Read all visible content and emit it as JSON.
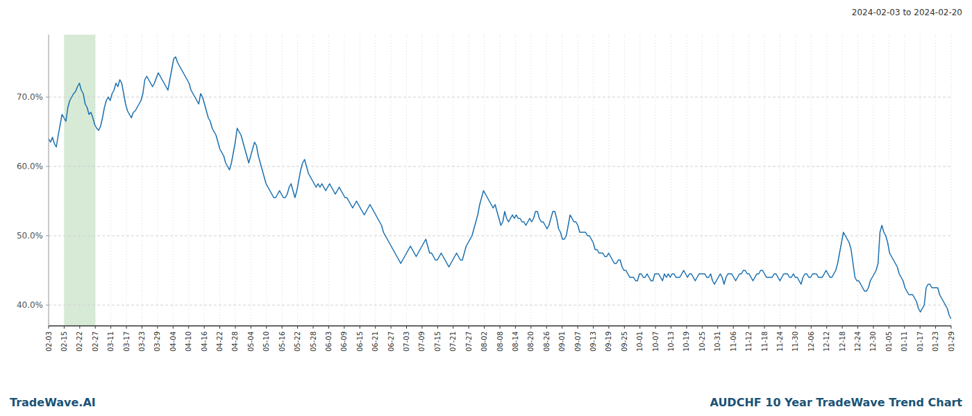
{
  "chart_data": {
    "type": "line",
    "title": "AUDCHF 10 Year TradeWave Trend Chart",
    "subtitle": "2024-02-03 to 2024-02-20",
    "annotations": [
      "TradeWave.AI"
    ],
    "color": "#1a6faf",
    "grid": true,
    "xlim": [
      0,
      469
    ],
    "ylim": [
      37.0,
      79.0
    ],
    "yticks": [
      {
        "value": 40.0,
        "label": "40.0%"
      },
      {
        "value": 50.0,
        "label": "50.0%"
      },
      {
        "value": 60.0,
        "label": "60.0%"
      },
      {
        "value": 70.0,
        "label": "70.0%"
      }
    ],
    "xticks": [
      {
        "value": 0,
        "label": "02-03"
      },
      {
        "value": 8.086207,
        "label": "02-15"
      },
      {
        "value": 16.172414,
        "label": "02-22"
      },
      {
        "value": 24.258621,
        "label": "02-27"
      },
      {
        "value": 32.344828,
        "label": "03-11"
      },
      {
        "value": 40.431034,
        "label": "03-17"
      },
      {
        "value": 48.517241,
        "label": "03-23"
      },
      {
        "value": 56.603448,
        "label": "03-29"
      },
      {
        "value": 64.689655,
        "label": "04-04"
      },
      {
        "value": 72.775862,
        "label": "04-10"
      },
      {
        "value": 80.862069,
        "label": "04-16"
      },
      {
        "value": 88.948276,
        "label": "04-22"
      },
      {
        "value": 97.034483,
        "label": "04-28"
      },
      {
        "value": 105.12069,
        "label": "05-04"
      },
      {
        "value": 113.206897,
        "label": "05-10"
      },
      {
        "value": 121.293103,
        "label": "05-16"
      },
      {
        "value": 129.37931,
        "label": "05-22"
      },
      {
        "value": 137.465517,
        "label": "05-28"
      },
      {
        "value": 145.551724,
        "label": "06-03"
      },
      {
        "value": 153.637931,
        "label": "06-09"
      },
      {
        "value": 161.724138,
        "label": "06-15"
      },
      {
        "value": 169.810345,
        "label": "06-21"
      },
      {
        "value": 177.896552,
        "label": "06-27"
      },
      {
        "value": 185.982759,
        "label": "07-03"
      },
      {
        "value": 194.068966,
        "label": "07-09"
      },
      {
        "value": 202.155172,
        "label": "07-15"
      },
      {
        "value": 210.241379,
        "label": "07-21"
      },
      {
        "value": 218.327586,
        "label": "07-27"
      },
      {
        "value": 226.413793,
        "label": "08-02"
      },
      {
        "value": 234.5,
        "label": "08-08"
      },
      {
        "value": 242.586207,
        "label": "08-14"
      },
      {
        "value": 250.672414,
        "label": "08-20"
      },
      {
        "value": 258.758621,
        "label": "08-26"
      },
      {
        "value": 266.844828,
        "label": "09-01"
      },
      {
        "value": 274.931034,
        "label": "09-07"
      },
      {
        "value": 283.017241,
        "label": "09-13"
      },
      {
        "value": 291.103448,
        "label": "09-19"
      },
      {
        "value": 299.189655,
        "label": "09-25"
      },
      {
        "value": 307.275862,
        "label": "10-01"
      },
      {
        "value": 315.362069,
        "label": "10-07"
      },
      {
        "value": 323.448276,
        "label": "10-13"
      },
      {
        "value": 331.534483,
        "label": "10-19"
      },
      {
        "value": 339.62069,
        "label": "10-25"
      },
      {
        "value": 347.706897,
        "label": "10-31"
      },
      {
        "value": 355.793103,
        "label": "11-06"
      },
      {
        "value": 363.87931,
        "label": "11-12"
      },
      {
        "value": 371.965517,
        "label": "11-18"
      },
      {
        "value": 380.051724,
        "label": "11-24"
      },
      {
        "value": 388.137931,
        "label": "11-30"
      },
      {
        "value": 396.224138,
        "label": "12-06"
      },
      {
        "value": 404.310345,
        "label": "12-12"
      },
      {
        "value": 412.396552,
        "label": "12-18"
      },
      {
        "value": 420.482759,
        "label": "12-24"
      },
      {
        "value": 428.568966,
        "label": "12-30"
      },
      {
        "value": 436.655172,
        "label": "01-05"
      },
      {
        "value": 444.741379,
        "label": "01-11"
      },
      {
        "value": 452.827586,
        "label": "01-17"
      },
      {
        "value": 460.913793,
        "label": "01-23"
      },
      {
        "value": 469,
        "label": "01-29"
      }
    ],
    "shaded_span": {
      "start": "02-15",
      "end": "02-27",
      "color": "#d6ead6"
    },
    "values": [
      64.0,
      63.5,
      64.2,
      63.3,
      62.8,
      64.5,
      66.0,
      67.5,
      67.0,
      66.5,
      68.5,
      69.5,
      70.0,
      70.5,
      70.8,
      71.5,
      72.0,
      71.0,
      70.5,
      69.0,
      68.5,
      67.5,
      67.8,
      67.0,
      66.0,
      65.5,
      65.2,
      65.8,
      67.0,
      68.5,
      69.5,
      70.0,
      69.5,
      70.5,
      71.0,
      72.0,
      71.5,
      72.5,
      72.0,
      70.5,
      69.0,
      68.0,
      67.5,
      67.0,
      67.8,
      68.0,
      68.5,
      69.0,
      69.5,
      70.5,
      72.5,
      73.0,
      72.5,
      72.0,
      71.5,
      72.0,
      72.8,
      73.5,
      73.0,
      72.5,
      72.0,
      71.5,
      71.0,
      72.5,
      74.0,
      75.5,
      75.8,
      75.0,
      74.5,
      74.0,
      73.5,
      73.0,
      72.5,
      72.0,
      71.0,
      70.5,
      70.0,
      69.5,
      69.0,
      70.5,
      70.0,
      69.0,
      68.0,
      67.0,
      66.5,
      65.5,
      65.0,
      64.5,
      63.5,
      62.5,
      62.0,
      61.5,
      60.5,
      60.0,
      59.5,
      60.5,
      62.0,
      63.5,
      65.5,
      65.0,
      64.5,
      63.5,
      62.5,
      61.5,
      60.5,
      61.5,
      62.5,
      63.5,
      63.0,
      61.5,
      60.5,
      59.5,
      58.5,
      57.5,
      57.0,
      56.5,
      56.0,
      55.5,
      55.5,
      56.0,
      56.5,
      56.0,
      55.5,
      55.5,
      56.0,
      57.0,
      57.5,
      56.5,
      55.5,
      56.5,
      58.0,
      59.5,
      60.5,
      61.0,
      60.0,
      59.0,
      58.5,
      58.0,
      57.5,
      57.0,
      57.5,
      57.0,
      57.5,
      57.0,
      56.5,
      57.0,
      57.5,
      57.0,
      56.5,
      56.0,
      56.5,
      57.0,
      56.5,
      56.0,
      55.5,
      55.5,
      55.0,
      54.5,
      54.0,
      54.5,
      55.0,
      54.5,
      54.0,
      53.5,
      53.0,
      53.5,
      54.0,
      54.5,
      54.0,
      53.5,
      53.0,
      52.5,
      52.0,
      51.5,
      50.5,
      50.0,
      49.5,
      49.0,
      48.5,
      48.0,
      47.5,
      47.0,
      46.5,
      46.0,
      46.5,
      47.0,
      47.5,
      48.0,
      48.5,
      48.0,
      47.5,
      47.0,
      47.5,
      48.0,
      48.5,
      49.0,
      49.5,
      48.5,
      47.5,
      47.5,
      47.0,
      46.5,
      46.5,
      47.0,
      47.5,
      47.0,
      46.5,
      46.0,
      45.5,
      46.0,
      46.5,
      47.0,
      47.5,
      47.0,
      46.5,
      46.5,
      47.5,
      48.5,
      49.0,
      49.5,
      50.0,
      51.0,
      52.0,
      53.0,
      54.5,
      55.5,
      56.5,
      56.0,
      55.5,
      55.0,
      54.5,
      54.0,
      54.5,
      53.5,
      52.5,
      51.5,
      52.0,
      53.5,
      52.5,
      52.0,
      52.5,
      53.0,
      52.5,
      53.0,
      52.5,
      52.5,
      52.0,
      52.0,
      51.5,
      52.0,
      52.5,
      52.0,
      52.5,
      53.5,
      53.5,
      52.5,
      52.0,
      52.0,
      51.5,
      51.0,
      51.5,
      52.5,
      53.5,
      53.5,
      52.5,
      51.0,
      50.5,
      49.5,
      49.5,
      50.0,
      51.5,
      53.0,
      52.5,
      52.0,
      52.0,
      51.5,
      50.5,
      50.5,
      50.5,
      50.5,
      50.0,
      50.0,
      49.5,
      49.0,
      48.0,
      48.0,
      47.5,
      47.5,
      47.5,
      47.0,
      47.0,
      47.5,
      47.0,
      46.5,
      46.0,
      46.0,
      46.5,
      46.5,
      45.5,
      45.0,
      45.0,
      44.5,
      44.0,
      44.0,
      44.0,
      43.5,
      43.5,
      44.5,
      44.5,
      44.0,
      44.0,
      44.5,
      44.0,
      43.5,
      43.5,
      44.5,
      44.5,
      44.5,
      44.0,
      43.5,
      44.5,
      44.0,
      44.5,
      44.0,
      44.5,
      44.5,
      44.0,
      44.0,
      44.0,
      44.5,
      45.0,
      44.5,
      44.0,
      44.5,
      44.5,
      44.0,
      43.5,
      44.0,
      44.5,
      44.5,
      44.5,
      44.5,
      44.0,
      44.0,
      44.5,
      43.5,
      43.0,
      43.5,
      44.0,
      44.5,
      44.0,
      43.0,
      44.0,
      44.5,
      44.5,
      44.5,
      44.0,
      43.5,
      44.0,
      44.5,
      44.5,
      45.0,
      45.0,
      44.5,
      44.5,
      44.0,
      43.5,
      44.0,
      44.5,
      44.5,
      45.0,
      45.0,
      44.5,
      44.0,
      44.0,
      44.0,
      44.0,
      44.5,
      44.5,
      44.0,
      43.5,
      44.0,
      44.5,
      44.5,
      44.5,
      44.0,
      44.0,
      44.5,
      44.0,
      44.0,
      43.5,
      43.0,
      44.0,
      44.5,
      44.5,
      44.0,
      44.0,
      44.5,
      44.5,
      44.5,
      44.0,
      44.0,
      44.0,
      44.5,
      45.0,
      44.5,
      44.0,
      44.0,
      44.5,
      45.0,
      46.0,
      47.5,
      49.0,
      50.5,
      50.0,
      49.5,
      49.0,
      48.0,
      46.0,
      44.0,
      43.5,
      43.5,
      43.0,
      42.5,
      42.0,
      42.0,
      42.5,
      43.5,
      44.0,
      44.5,
      45.0,
      46.0,
      50.5,
      51.5,
      50.5,
      50.0,
      49.0,
      47.5,
      47.0,
      46.5,
      46.0,
      45.5,
      44.5,
      44.0,
      43.5,
      42.5,
      42.0,
      41.5,
      41.5,
      41.5,
      41.0,
      40.5,
      39.5,
      39.0,
      39.5,
      40.0,
      42.5,
      43.0,
      43.0,
      42.5,
      42.5,
      42.5,
      42.5,
      41.5,
      41.0,
      40.5,
      40.0,
      39.5,
      38.5,
      38.0
    ]
  }
}
